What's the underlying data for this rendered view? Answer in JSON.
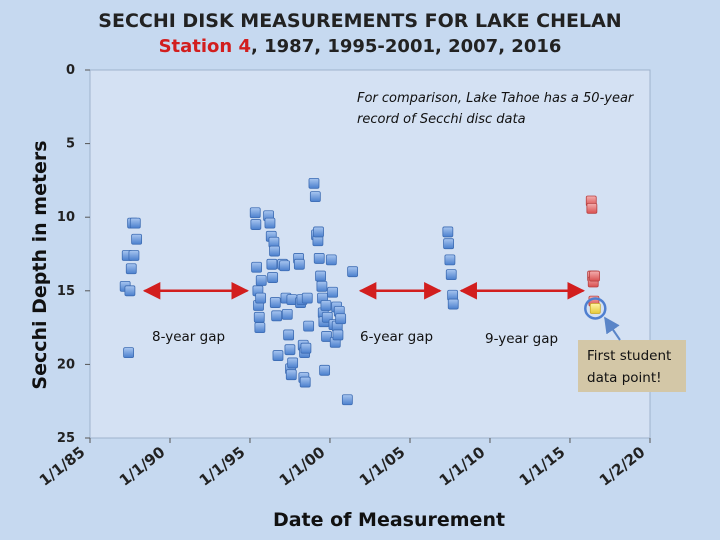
{
  "chart_data": {
    "type": "scatter",
    "title": "SECCHI DISK MEASUREMENTS FOR LAKE CHELAN",
    "subtitle_station": "Station 4",
    "subtitle_years": ", 1987, 1995-2001, 2007, 2016",
    "xlabel": "Date of Measurement",
    "ylabel": "Secchi Depth in meters",
    "x_axis": {
      "type": "date",
      "range": [
        "1985-01-01",
        "2020-01-02"
      ]
    },
    "y_axis": {
      "range": [
        0,
        25
      ],
      "inverted": true
    },
    "y_ticks": [
      0,
      5,
      10,
      15,
      20,
      25
    ],
    "x_ticks": [
      {
        "date": "1985-01-01",
        "label": "1/1/85"
      },
      {
        "date": "1990-01-01",
        "label": "1/1/90"
      },
      {
        "date": "1995-01-01",
        "label": "1/1/95"
      },
      {
        "date": "2000-01-01",
        "label": "1/1/00"
      },
      {
        "date": "2005-01-01",
        "label": "1/1/05"
      },
      {
        "date": "2010-01-01",
        "label": "1/1/10"
      },
      {
        "date": "2015-01-01",
        "label": "1/1/15"
      },
      {
        "date": "2020-01-02",
        "label": "1/2/20"
      }
    ],
    "grid": false,
    "series": [
      {
        "color": "#5b8fd6",
        "points": [
          [
            "1987-03-15",
            14.7
          ],
          [
            "1987-05-01",
            12.6
          ],
          [
            "1987-06-01",
            19.2
          ],
          [
            "1987-07-01",
            15.0
          ],
          [
            "1987-08-01",
            13.5
          ],
          [
            "1987-09-01",
            10.4
          ],
          [
            "1987-10-01",
            12.6
          ],
          [
            "1987-11-01",
            10.4
          ],
          [
            "1987-12-01",
            11.5
          ],
          [
            "1995-05-01",
            9.7
          ],
          [
            "1995-05-15",
            10.5
          ],
          [
            "1995-06-01",
            13.4
          ],
          [
            "1995-07-01",
            15.0
          ],
          [
            "1995-07-15",
            16.0
          ],
          [
            "1995-08-01",
            16.8
          ],
          [
            "1995-08-15",
            17.5
          ],
          [
            "1995-09-01",
            15.5
          ],
          [
            "1995-09-15",
            14.3
          ],
          [
            "1996-03-01",
            9.9
          ],
          [
            "1996-04-01",
            10.4
          ],
          [
            "1996-05-01",
            11.3
          ],
          [
            "1996-05-15",
            13.2
          ],
          [
            "1996-06-01",
            14.1
          ],
          [
            "1996-07-01",
            11.7
          ],
          [
            "1996-07-15",
            12.3
          ],
          [
            "1996-08-01",
            15.8
          ],
          [
            "1996-09-01",
            16.7
          ],
          [
            "1996-10-01",
            19.4
          ],
          [
            "1997-01-15",
            13.2
          ],
          [
            "1997-03-01",
            13.3
          ],
          [
            "1997-04-01",
            15.5
          ],
          [
            "1997-05-01",
            16.6
          ],
          [
            "1997-06-01",
            18.0
          ],
          [
            "1997-07-01",
            19.0
          ],
          [
            "1997-07-15",
            20.3
          ],
          [
            "1997-08-01",
            20.7
          ],
          [
            "1997-08-15",
            15.6
          ],
          [
            "1997-09-01",
            19.9
          ],
          [
            "1998-01-15",
            12.8
          ],
          [
            "1998-02-01",
            13.2
          ],
          [
            "1998-03-01",
            15.8
          ],
          [
            "1998-04-01",
            15.6
          ],
          [
            "1998-05-01",
            18.7
          ],
          [
            "1998-05-15",
            20.9
          ],
          [
            "1998-06-01",
            19.2
          ],
          [
            "1998-06-15",
            21.2
          ],
          [
            "1998-07-01",
            18.9
          ],
          [
            "1998-08-01",
            15.5
          ],
          [
            "1998-09-01",
            17.4
          ],
          [
            "1999-01-01",
            7.7
          ],
          [
            "1999-02-01",
            8.6
          ],
          [
            "1999-03-01",
            11.2
          ],
          [
            "1999-04-01",
            11.6
          ],
          [
            "1999-04-15",
            11.0
          ],
          [
            "1999-05-01",
            12.8
          ],
          [
            "1999-06-01",
            14.0
          ],
          [
            "1999-07-01",
            14.7
          ],
          [
            "1999-07-15",
            15.5
          ],
          [
            "1999-08-01",
            16.5
          ],
          [
            "1999-08-15",
            17.1
          ],
          [
            "1999-09-01",
            20.4
          ],
          [
            "1999-10-01",
            16.0
          ],
          [
            "1999-10-15",
            18.1
          ],
          [
            "1999-11-01",
            16.8
          ],
          [
            "2000-02-01",
            12.9
          ],
          [
            "2000-03-01",
            15.1
          ],
          [
            "2000-04-01",
            17.3
          ],
          [
            "2000-05-01",
            18.5
          ],
          [
            "2000-06-01",
            16.1
          ],
          [
            "2000-06-15",
            17.4
          ],
          [
            "2000-07-01",
            18.0
          ],
          [
            "2000-08-01",
            16.4
          ],
          [
            "2000-09-01",
            16.9
          ],
          [
            "2001-02-01",
            22.4
          ],
          [
            "2001-06-01",
            13.7
          ],
          [
            "2007-05-15",
            11.0
          ],
          [
            "2007-06-01",
            11.8
          ],
          [
            "2007-07-01",
            12.9
          ],
          [
            "2007-08-01",
            13.9
          ],
          [
            "2007-09-01",
            15.3
          ],
          [
            "2007-09-15",
            15.9
          ]
        ]
      },
      {
        "color": "#e06666",
        "points": [
          [
            "2016-05-01",
            8.9
          ],
          [
            "2016-05-15",
            9.4
          ],
          [
            "2016-06-01",
            14.0
          ],
          [
            "2016-06-15",
            14.4
          ],
          [
            "2016-07-01",
            15.7
          ],
          [
            "2016-07-15",
            14.0
          ]
        ]
      },
      {
        "color": "#f1e25a",
        "points": [
          [
            "2016-08-01",
            16.2
          ]
        ]
      }
    ],
    "annotations": {
      "comparison_note_line1": "For comparison, Lake Tahoe has a 50-year",
      "comparison_note_line2": "record of Secchi disc data",
      "gap1_label": "8-year gap",
      "gap2_label": "6-year gap",
      "gap3_label": "9-year gap",
      "first_point_line1": "First student",
      "first_point_line2": "data point!",
      "gap_arrow_color": "#d21e1e",
      "gap_arrows": [
        {
          "from": "1987-12-01",
          "to": "1995-05-01",
          "y": 15
        },
        {
          "from": "2001-06-01",
          "to": "2007-05-15",
          "y": 15
        },
        {
          "from": "2007-09-15",
          "to": "2016-05-01",
          "y": 15
        }
      ],
      "highlight": {
        "date": "2016-08-01",
        "y": 16.2
      }
    }
  }
}
